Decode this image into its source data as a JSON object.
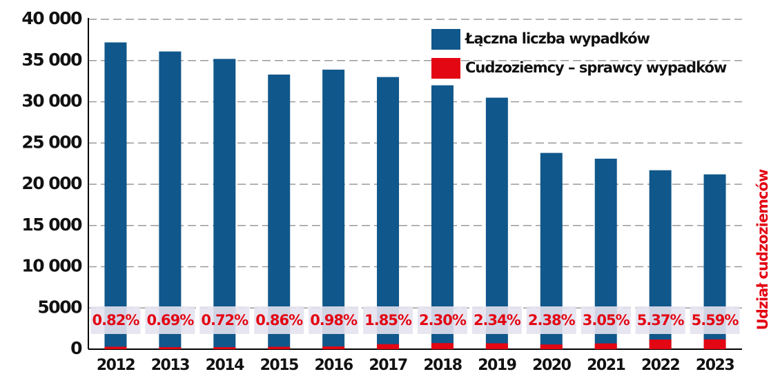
{
  "chart_data": {
    "type": "bar",
    "categories": [
      "2012",
      "2013",
      "2014",
      "2015",
      "2016",
      "2017",
      "2018",
      "2019",
      "2020",
      "2021",
      "2022",
      "2023"
    ],
    "series": [
      {
        "name": "Łączna liczba wypadków",
        "color": "#10578b",
        "values": [
          37200,
          36100,
          35200,
          33300,
          33900,
          33000,
          32000,
          30500,
          23800,
          23100,
          21700,
          21200
        ]
      },
      {
        "name": "Cudzoziemcy – sprawcy wypadków",
        "color": "#e30613",
        "values": [
          300,
          250,
          250,
          290,
          330,
          610,
          740,
          710,
          570,
          700,
          1170,
          1190
        ]
      }
    ],
    "share": {
      "name": "Udział cudzoziemców",
      "color": "#e30613",
      "values": [
        0.82,
        0.69,
        0.72,
        0.86,
        0.98,
        1.85,
        2.3,
        2.34,
        2.38,
        3.05,
        5.37,
        5.59
      ],
      "value_labels": [
        "0.82%",
        "0.69%",
        "0.72%",
        "0.86%",
        "0.98%",
        "1.85%",
        "2.30%",
        "2.34%",
        "2.38%",
        "3.05%",
        "5.37%",
        "5.59%"
      ]
    },
    "ylim": [
      0,
      40000
    ],
    "yticks": [
      0,
      5000,
      {
        "value": 10000,
        "label": "10 000"
      },
      {
        "value": 15000,
        "label": "15 000"
      },
      {
        "value": 20000,
        "label": "20 000"
      },
      {
        "value": 25000,
        "label": "25 000"
      },
      {
        "value": 30000,
        "label": "30 000"
      },
      {
        "value": 35000,
        "label": "35 000"
      },
      {
        "value": 40000,
        "label": "40 000"
      }
    ],
    "grid": true,
    "legend": "top-right"
  }
}
